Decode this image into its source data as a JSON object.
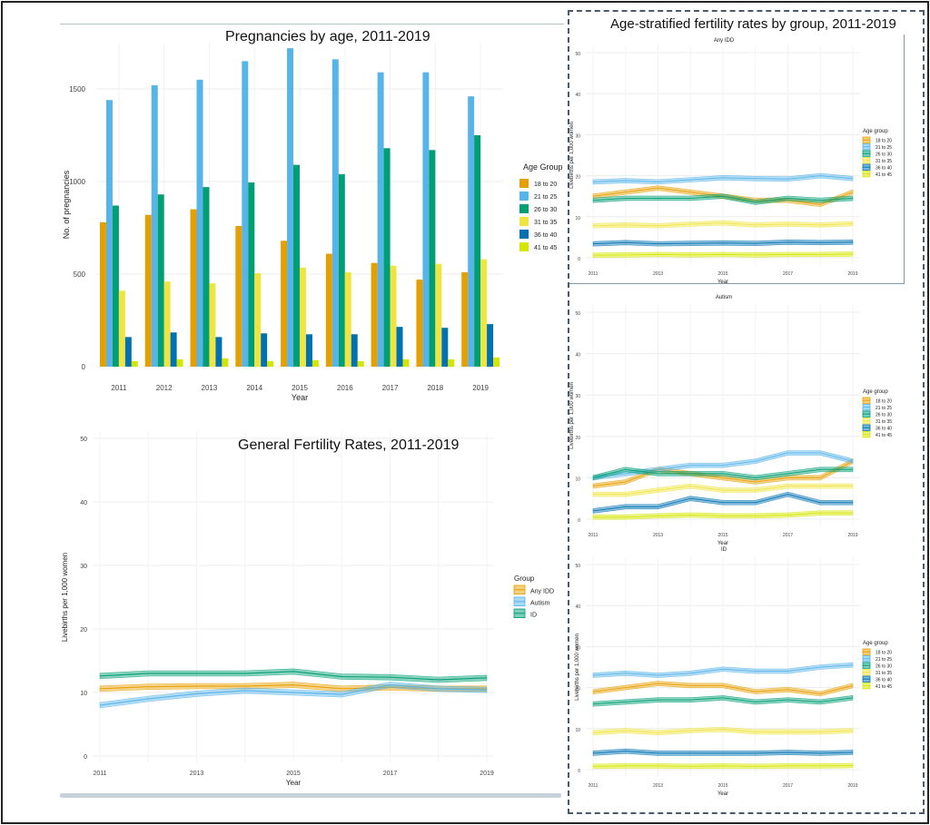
{
  "chart_data": [
    {
      "type": "bar",
      "title": "Pregnancies by age, 2011-2019",
      "xlabel": "Year",
      "ylabel": "No. of pregnancies",
      "ylim": [
        0,
        1750
      ],
      "yticks": [
        0,
        500,
        1000,
        1500
      ],
      "categories": [
        "2011",
        "2012",
        "2013",
        "2014",
        "2015",
        "2016",
        "2017",
        "2018",
        "2019"
      ],
      "legend_title": "Age Group",
      "legend_position": "right",
      "series": [
        {
          "name": "18 to 20",
          "color": "#E69F00",
          "values": [
            780,
            820,
            850,
            760,
            680,
            610,
            560,
            470,
            510
          ]
        },
        {
          "name": "21 to 25",
          "color": "#56B4E9",
          "values": [
            1440,
            1520,
            1550,
            1650,
            1720,
            1660,
            1590,
            1590,
            1460
          ]
        },
        {
          "name": "26 to 30",
          "color": "#009E73",
          "values": [
            870,
            930,
            970,
            995,
            1090,
            1040,
            1180,
            1170,
            1250
          ]
        },
        {
          "name": "31 to 35",
          "color": "#F0E442",
          "values": [
            410,
            460,
            450,
            505,
            535,
            510,
            545,
            555,
            580
          ]
        },
        {
          "name": "36 to 40",
          "color": "#0072B2",
          "values": [
            160,
            185,
            160,
            180,
            175,
            175,
            215,
            210,
            230
          ]
        },
        {
          "name": "41 to 45",
          "color": "#D4E600",
          "values": [
            30,
            40,
            45,
            30,
            35,
            30,
            40,
            40,
            50
          ]
        }
      ]
    },
    {
      "type": "line",
      "title": "General Fertility Rates, 2011-2019",
      "xlabel": "Year",
      "ylabel": "Livebirths per 1,000 women",
      "ylim": [
        0,
        50
      ],
      "yticks": [
        0,
        10,
        20,
        30,
        40,
        50
      ],
      "xticks": [
        2011,
        2013,
        2015,
        2017,
        2019
      ],
      "x": [
        2011,
        2012,
        2013,
        2014,
        2015,
        2016,
        2017,
        2018,
        2019
      ],
      "legend_title": "Group",
      "legend_position": "right",
      "series": [
        {
          "name": "Any IDD",
          "color": "#E69F00",
          "values": [
            10.6,
            10.9,
            11.0,
            11.0,
            11.2,
            10.6,
            10.8,
            10.6,
            10.6
          ]
        },
        {
          "name": "Autism",
          "color": "#56B4E9",
          "values": [
            8.0,
            9.0,
            9.8,
            10.3,
            10.0,
            9.7,
            11.2,
            10.6,
            10.4
          ]
        },
        {
          "name": "ID",
          "color": "#009E73",
          "values": [
            12.6,
            13.0,
            13.0,
            13.0,
            13.3,
            12.5,
            12.4,
            12.0,
            12.3
          ]
        }
      ]
    },
    {
      "type": "line",
      "title": "Any IDD",
      "xlabel": "Year",
      "ylabel": "Livebirths per 1,000 women",
      "ylim": [
        0,
        50
      ],
      "yticks": [
        0,
        10,
        20,
        30,
        40,
        50
      ],
      "xticks": [
        2011,
        2013,
        2015,
        2017,
        2019
      ],
      "x": [
        2011,
        2012,
        2013,
        2014,
        2015,
        2016,
        2017,
        2018,
        2019
      ],
      "legend_title": "Age group",
      "legend_position": "right",
      "series": [
        {
          "name": "18 to 20",
          "color": "#E69F00",
          "values": [
            15,
            16,
            17,
            16,
            15,
            14,
            14,
            13,
            16
          ]
        },
        {
          "name": "21 to 25",
          "color": "#56B4E9",
          "values": [
            18.5,
            18.8,
            18.5,
            19,
            19.5,
            19.3,
            19.2,
            20,
            19.3
          ]
        },
        {
          "name": "26 to 30",
          "color": "#009E73",
          "values": [
            14,
            14.5,
            14.5,
            14.5,
            15,
            13.5,
            14.5,
            14,
            14.5
          ]
        },
        {
          "name": "31 to 35",
          "color": "#F0E442",
          "values": [
            7.8,
            8.0,
            7.8,
            8.2,
            8.5,
            8.0,
            8.2,
            8.0,
            8.3
          ]
        },
        {
          "name": "36 to 40",
          "color": "#0072B2",
          "values": [
            3.4,
            3.7,
            3.4,
            3.5,
            3.6,
            3.5,
            3.8,
            3.7,
            3.8
          ]
        },
        {
          "name": "41 to 45",
          "color": "#D4E600",
          "values": [
            0.6,
            0.7,
            0.8,
            0.7,
            0.8,
            0.7,
            0.8,
            0.8,
            0.9
          ]
        }
      ]
    },
    {
      "type": "line",
      "title": "Autism",
      "xlabel": "Year",
      "ylabel": "Livebirths per 1,000 women",
      "ylim": [
        0,
        50
      ],
      "yticks": [
        0,
        10,
        20,
        30,
        40,
        50
      ],
      "xticks": [
        2011,
        2013,
        2015,
        2017,
        2019
      ],
      "x": [
        2011,
        2012,
        2013,
        2014,
        2015,
        2016,
        2017,
        2018,
        2019
      ],
      "legend_title": "Age group",
      "legend_position": "right",
      "series": [
        {
          "name": "18 to 20",
          "color": "#E69F00",
          "values": [
            8,
            9,
            12,
            11,
            10,
            9,
            10,
            10,
            14
          ]
        },
        {
          "name": "21 to 25",
          "color": "#56B4E9",
          "values": [
            10,
            11,
            12,
            13,
            13,
            14,
            16,
            16,
            14
          ]
        },
        {
          "name": "26 to 30",
          "color": "#009E73",
          "values": [
            10,
            12,
            11,
            11,
            11,
            10,
            11,
            12,
            12
          ]
        },
        {
          "name": "31 to 35",
          "color": "#F0E442",
          "values": [
            6,
            6,
            7,
            8,
            7,
            7,
            8,
            8,
            8
          ]
        },
        {
          "name": "36 to 40",
          "color": "#0072B2",
          "values": [
            2,
            3,
            3,
            5,
            4,
            4,
            6,
            4,
            4
          ]
        },
        {
          "name": "41 to 45",
          "color": "#D4E600",
          "values": [
            0.5,
            0.5,
            0.8,
            1,
            0.8,
            0.8,
            1,
            1.5,
            1.5
          ]
        }
      ]
    },
    {
      "type": "line",
      "title": "ID",
      "xlabel": "Year",
      "ylabel": "Livebirths per 1,000 women",
      "ylim": [
        0,
        50
      ],
      "yticks": [
        0,
        10,
        20,
        30,
        40,
        50
      ],
      "xticks": [
        2011,
        2013,
        2015,
        2017,
        2019
      ],
      "x": [
        2011,
        2012,
        2013,
        2014,
        2015,
        2016,
        2017,
        2018,
        2019
      ],
      "legend_title": "Age group",
      "legend_position": "right",
      "series": [
        {
          "name": "18 to 20",
          "color": "#E69F00",
          "values": [
            19,
            20,
            21,
            20.5,
            20.5,
            19,
            19.5,
            18.5,
            20.5
          ]
        },
        {
          "name": "21 to 25",
          "color": "#56B4E9",
          "values": [
            23,
            23.5,
            23,
            23.5,
            24.5,
            24,
            24,
            25,
            25.5
          ]
        },
        {
          "name": "26 to 30",
          "color": "#009E73",
          "values": [
            16,
            16.5,
            17,
            17,
            17.5,
            16.5,
            17,
            16.5,
            17.5
          ]
        },
        {
          "name": "31 to 35",
          "color": "#F0E442",
          "values": [
            9,
            9.5,
            9,
            9.5,
            9.8,
            9.2,
            9.2,
            9.2,
            9.5
          ]
        },
        {
          "name": "36 to 40",
          "color": "#0072B2",
          "values": [
            4,
            4.5,
            4,
            4,
            4,
            4,
            4.2,
            4,
            4.2
          ]
        },
        {
          "name": "41 to 45",
          "color": "#D4E600",
          "values": [
            0.8,
            0.9,
            0.9,
            0.8,
            0.9,
            0.8,
            0.9,
            0.9,
            1.0
          ]
        }
      ]
    }
  ],
  "group_title": "Age-stratified fertility rates by group, 2011-2019"
}
